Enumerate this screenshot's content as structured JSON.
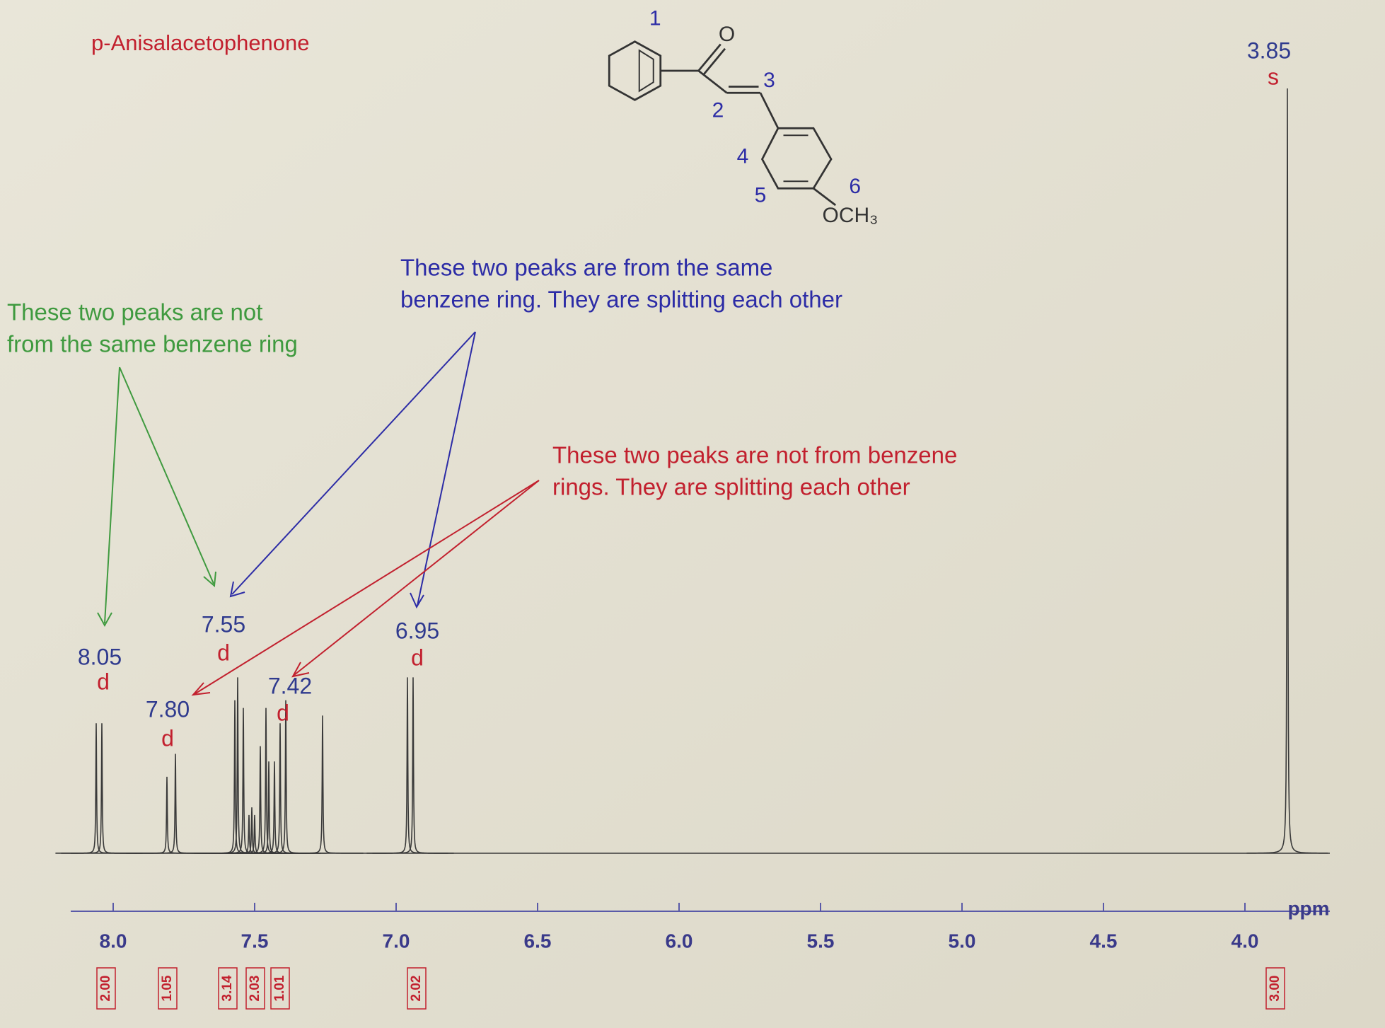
{
  "chart_data": {
    "type": "nmr",
    "title": "p-Anisalacetophenone",
    "x_label": "ppm",
    "xlim": [
      8.15,
      3.7
    ],
    "ylim": [
      0,
      100
    ],
    "xticks": [
      {
        "value": 8,
        "label": "8.0"
      },
      7.5,
      {
        "value": 7,
        "label": "7.0"
      },
      6.5,
      {
        "value": 6,
        "label": "6.0"
      },
      5.5,
      {
        "value": 5,
        "label": "5.0"
      },
      4.5,
      {
        "value": 4,
        "label": "4.0"
      }
    ],
    "color": "#3a3a3a",
    "x": [
      8.06,
      8.04,
      7.81,
      7.78,
      7.57,
      7.56,
      7.54,
      7.52,
      7.51,
      7.5,
      7.48,
      7.46,
      7.45,
      7.43,
      7.41,
      7.39,
      7.26,
      6.96,
      6.94,
      3.85
    ],
    "values": [
      17,
      17,
      10,
      13,
      20,
      23,
      19,
      5,
      6,
      5,
      14,
      19,
      12,
      12,
      17,
      20,
      18,
      23,
      23,
      100
    ],
    "peaks": [
      {
        "shift": "8.05",
        "multiplicity": "d"
      },
      {
        "shift": "7.80",
        "multiplicity": "d"
      },
      {
        "shift": "7.55",
        "multiplicity": "d"
      },
      {
        "shift": "7.42",
        "multiplicity": "d"
      },
      {
        "shift": "6.95",
        "multiplicity": "d"
      },
      {
        "shift": "3.85",
        "multiplicity": "s"
      }
    ],
    "integrals": [
      "2.00",
      "1.05",
      "3.14",
      "2.03",
      "1.01",
      "2.02",
      "3.00"
    ],
    "annotations": [
      {
        "lines": [
          "These two peaks are not",
          "from the same benzene ring"
        ],
        "color": "#3f9a3f"
      },
      {
        "lines": [
          "These two peaks are from the same",
          "benzene ring. They are splitting each other"
        ],
        "color": "#2c2ca6"
      },
      {
        "lines": [
          "These two peaks are not from benzene",
          "rings. They are splitting each other"
        ],
        "color": "#c2202e"
      }
    ],
    "structure": {
      "labels": [
        "1",
        "2",
        "3",
        "4",
        "5",
        "6"
      ],
      "oxygen": "O",
      "methoxy": "OCH₃"
    }
  }
}
